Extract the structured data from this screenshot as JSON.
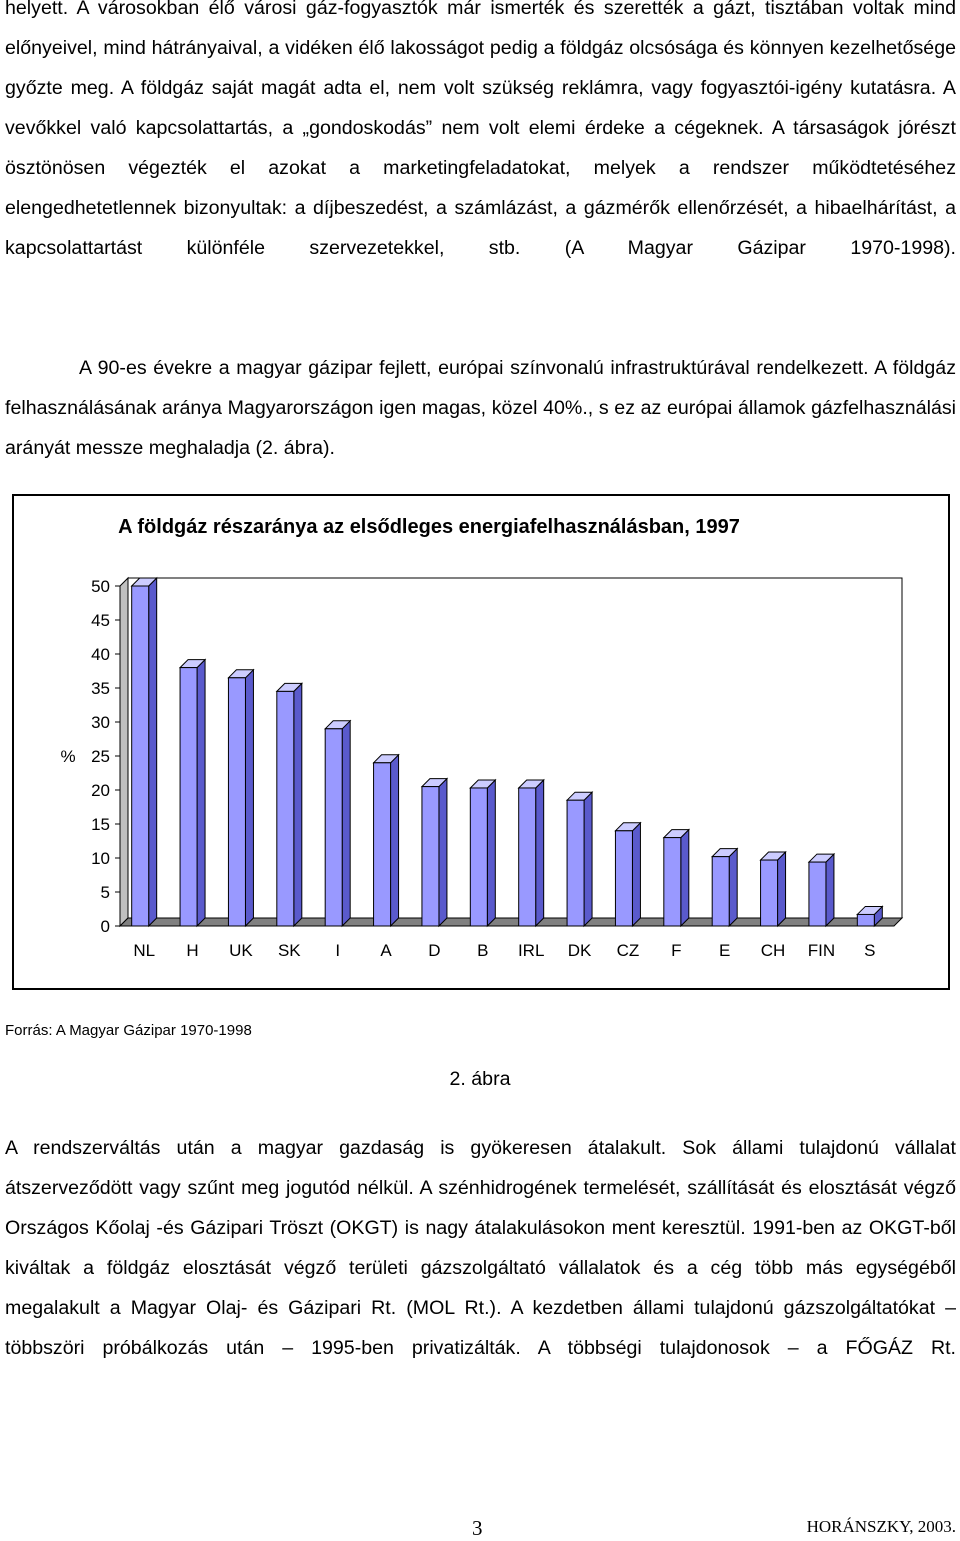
{
  "text": {
    "p_top": "helyett. A városokban élő városi gáz-fogyasztók már ismerték és szerették a gázt, tisztában voltak mind előnyeivel, mind hátrányaival, a vidéken élő lakosságot pedig a földgáz olcsósága és könnyen kezelhetősége győzte meg. A földgáz saját magát adta el, nem volt szükség reklámra, vagy fogyasztói-igény kutatásra. A vevőkkel való kapcsolattartás, a „gondoskodás” nem volt elemi érdeke a cégeknek. A társaságok jórészt ösztönösen végezték el azokat a marketingfeladatokat, melyek a rendszer működtetéséhez elengedhetetlennek bizonyultak: a díjbeszedést, a számlázást, a gázmérők ellenőrzését, a hibaelhárítást, a kapcsolattartást különféle szervezetekkel, stb. (A Magyar Gázipar 1970-1998).",
    "p_second": "A 90-es évekre a magyar gázipar fejlett, európai színvonalú infrastruktúrával rendelkezett. A földgáz felhasználásának aránya Magyarországon igen magas, közel 40%., s ez az európai államok gázfelhasználási arányát messze meghaladja (2. ábra).",
    "source": "Forrás: A Magyar Gázipar 1970-1998",
    "figure_caption": "2. ábra",
    "p_bottom": "A rendszerváltás után a magyar gazdaság is gyökeresen átalakult. Sok állami tulajdonú vállalat átszerveződött vagy szűnt meg jogutód nélkül. A szénhidrogének termelését, szállítását és elosztását végző Országos Kőolaj -és Gázipari Tröszt (OKGT) is nagy átalakulásokon ment keresztül. 1991-ben az OKGT-ből kiváltak a földgáz elosztását végző területi gázszolgáltató vállalatok és a cég több más egységéből megalakult a Magyar Olaj- és Gázipari Rt. (MOL Rt.). A kezdetben állami tulajdonú gázszolgáltatókat – többszöri próbálkozás után – 1995-ben privatizálták. A többségi tulajdonosok – a FŐGÁZ Rt.",
    "page_number": "3",
    "author": "HORÁNSZKY, 2003."
  },
  "chart_data": {
    "type": "bar",
    "title": "A földgáz részaránya az elsődleges energiafelhasználásban, 1997",
    "ylabel": "%",
    "xlabel": "",
    "categories": [
      "NL",
      "H",
      "UK",
      "SK",
      "I",
      "A",
      "D",
      "B",
      "IRL",
      "DK",
      "CZ",
      "F",
      "E",
      "CH",
      "FIN",
      "S"
    ],
    "values": [
      50,
      38,
      36.5,
      34.5,
      29,
      24,
      20.5,
      20.3,
      20.3,
      18.5,
      14,
      13,
      10.2,
      9.7,
      9.4,
      1.7
    ],
    "ylim": [
      0,
      50
    ],
    "yticks": [
      0,
      5,
      10,
      15,
      20,
      25,
      30,
      35,
      40,
      45,
      50
    ],
    "grid": false,
    "legend": "none",
    "colors": {
      "bar_front": "#9999ff",
      "bar_side": "#5a5acc",
      "bar_top": "#ccccff",
      "wall": "#ffffff",
      "floor": "#808080",
      "outline": "#000000"
    }
  }
}
